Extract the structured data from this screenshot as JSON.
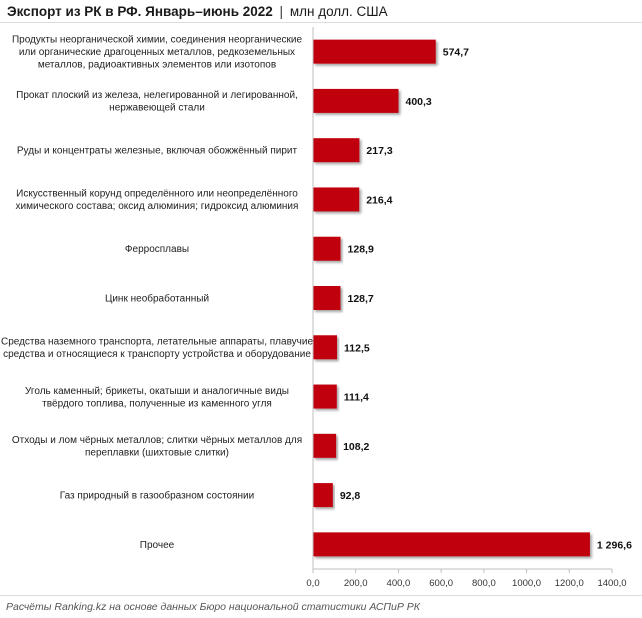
{
  "title": {
    "main": "Экспорт из РК в РФ. Январь–июнь 2022",
    "separator": "|",
    "unit": "млн долл. США"
  },
  "source": "Расчёты Ranking.kz на основе данных Бюро национальной статистики АСПиР РК",
  "colors": {
    "bar": "#c0000c",
    "axis": "#bfbfbf"
  },
  "chart_data": {
    "type": "bar",
    "orientation": "horizontal",
    "categories": [
      [
        "Продукты неорганической химии, соединения неорганические",
        "или органические драгоценных металлов, редкоземельных",
        "металлов, радиоактивных элементов или изотопов"
      ],
      [
        "Прокат плоский из железа, нелегированной и легированной,",
        "нержавеющей стали"
      ],
      [
        "Руды и концентраты железные, включая обожжённый пирит"
      ],
      [
        "Искусственный корунд определённого или неопределённого",
        "химического состава; оксид алюминия; гидроксид алюминия"
      ],
      [
        "Ферросплавы"
      ],
      [
        "Цинк необработанный"
      ],
      [
        "Средства наземного транспорта, летательные аппараты, плавучие",
        "средства и относящиеся к транспорту устройства и оборудование"
      ],
      [
        "Уголь каменный; брикеты, окатыши и аналогичные виды",
        "твёрдого топлива, полученные из каменного угля"
      ],
      [
        "Отходы и лом чёрных металлов; слитки чёрных металлов для",
        "переплавки (шихтовые слитки)"
      ],
      [
        "Газ природный в газообразном состоянии"
      ],
      [
        "Прочее"
      ]
    ],
    "values": [
      574.7,
      400.3,
      217.3,
      216.4,
      128.9,
      128.7,
      112.5,
      111.4,
      108.2,
      92.8,
      1296.6
    ],
    "value_labels": [
      "574,7",
      "400,3",
      "217,3",
      "216,4",
      "128,9",
      "128,7",
      "112,5",
      "111,4",
      "108,2",
      "92,8",
      "1 296,6"
    ],
    "xlim": [
      0,
      1400
    ],
    "xticks": [
      0,
      200,
      400,
      600,
      800,
      1000,
      1200,
      1400
    ],
    "xtick_labels": [
      "0,0",
      "200,0",
      "400,0",
      "600,0",
      "800,0",
      "1000,0",
      "1200,0",
      "1400,0"
    ],
    "grid": false,
    "legend": false
  }
}
